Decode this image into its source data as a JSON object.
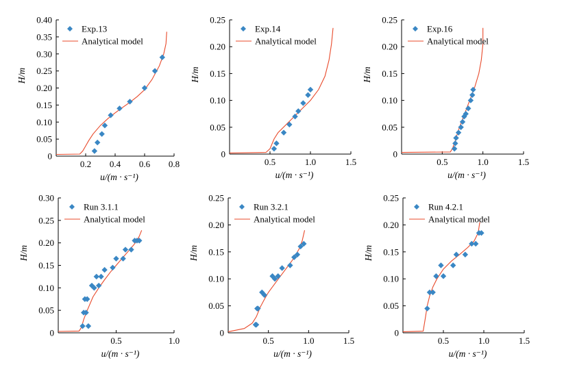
{
  "colors": {
    "points": "#3a87c4",
    "model": "#e8492a",
    "axes": "#000000"
  },
  "model_label": "Analytical model",
  "chart_data": [
    {
      "type": "scatter",
      "legend_name": "Exp.13",
      "xlabel": "u/(m · s⁻¹)",
      "ylabel": "H/m",
      "xlim": [
        0,
        0.8
      ],
      "ylim": [
        0,
        0.4
      ],
      "xticks": [
        {
          "v": 0.2,
          "label": "0.2"
        },
        {
          "v": 0.4,
          "label": "0.4"
        },
        {
          "v": 0.6,
          "label": "0.6"
        },
        {
          "v": 0.8,
          "label": "0.8"
        }
      ],
      "yticks": [
        {
          "v": 0,
          "label": "0"
        },
        {
          "v": 0.05,
          "label": "0.05"
        },
        {
          "v": 0.1,
          "label": "0.10"
        },
        {
          "v": 0.15,
          "label": "0.15"
        },
        {
          "v": 0.2,
          "label": "0.20"
        },
        {
          "v": 0.25,
          "label": "0.25"
        },
        {
          "v": 0.3,
          "label": "0.30"
        },
        {
          "v": 0.35,
          "label": "0.35"
        },
        {
          "v": 0.4,
          "label": "0.40"
        }
      ],
      "series": [
        {
          "kind": "points",
          "x": [
            0.26,
            0.28,
            0.31,
            0.33,
            0.37,
            0.43,
            0.5,
            0.6,
            0.67,
            0.72
          ],
          "y": [
            0.015,
            0.04,
            0.065,
            0.09,
            0.12,
            0.14,
            0.16,
            0.2,
            0.25,
            0.29
          ]
        },
        {
          "kind": "model",
          "x": [
            0.0,
            0.16,
            0.18,
            0.2,
            0.22,
            0.25,
            0.3,
            0.35,
            0.4,
            0.45,
            0.5,
            0.55,
            0.6,
            0.65,
            0.7,
            0.73,
            0.745,
            0.75
          ],
          "y": [
            0.005,
            0.006,
            0.015,
            0.03,
            0.045,
            0.065,
            0.09,
            0.11,
            0.127,
            0.143,
            0.158,
            0.175,
            0.195,
            0.225,
            0.265,
            0.3,
            0.33,
            0.365
          ]
        }
      ]
    },
    {
      "type": "scatter",
      "legend_name": "Exp.14",
      "xlabel": "u/(m · s⁻¹)",
      "ylabel": "H/m",
      "xlim": [
        0,
        1.5
      ],
      "ylim": [
        0,
        0.25
      ],
      "xticks": [
        {
          "v": 0.5,
          "label": "0.5"
        },
        {
          "v": 1.0,
          "label": "1.0"
        },
        {
          "v": 1.5,
          "label": "1.5"
        }
      ],
      "yticks": [
        {
          "v": 0,
          "label": "0"
        },
        {
          "v": 0.05,
          "label": "0.05"
        },
        {
          "v": 0.1,
          "label": "0.10"
        },
        {
          "v": 0.15,
          "label": "0.15"
        },
        {
          "v": 0.2,
          "label": "0.20"
        },
        {
          "v": 0.25,
          "label": "0.25"
        }
      ],
      "series": [
        {
          "kind": "points",
          "x": [
            0.55,
            0.58,
            0.67,
            0.74,
            0.81,
            0.85,
            0.91,
            0.97,
            1.0
          ],
          "y": [
            0.01,
            0.02,
            0.04,
            0.055,
            0.07,
            0.08,
            0.095,
            0.11,
            0.12
          ]
        },
        {
          "kind": "model",
          "x": [
            0.0,
            0.45,
            0.5,
            0.55,
            0.6,
            0.7,
            0.8,
            0.9,
            1.0,
            1.1,
            1.18,
            1.23,
            1.26,
            1.28
          ],
          "y": [
            0.002,
            0.003,
            0.01,
            0.028,
            0.04,
            0.055,
            0.07,
            0.085,
            0.1,
            0.12,
            0.145,
            0.175,
            0.205,
            0.235
          ]
        }
      ]
    },
    {
      "type": "scatter",
      "legend_name": "Exp.16",
      "xlabel": "u/(m · s⁻¹)",
      "ylabel": "H/m",
      "xlim": [
        0,
        1.5
      ],
      "ylim": [
        0,
        0.25
      ],
      "xticks": [
        {
          "v": 0.5,
          "label": "0.5"
        },
        {
          "v": 1.0,
          "label": "1.0"
        },
        {
          "v": 1.5,
          "label": "1.5"
        }
      ],
      "yticks": [
        {
          "v": 0,
          "label": "0"
        },
        {
          "v": 0.05,
          "label": "0.05"
        },
        {
          "v": 0.1,
          "label": "0.10"
        },
        {
          "v": 0.15,
          "label": "0.15"
        },
        {
          "v": 0.2,
          "label": "0.20"
        },
        {
          "v": 0.25,
          "label": "0.25"
        }
      ],
      "series": [
        {
          "kind": "points",
          "x": [
            0.65,
            0.66,
            0.67,
            0.7,
            0.73,
            0.75,
            0.77,
            0.79,
            0.82,
            0.85,
            0.87,
            0.88
          ],
          "y": [
            0.01,
            0.02,
            0.03,
            0.04,
            0.05,
            0.06,
            0.07,
            0.075,
            0.085,
            0.1,
            0.11,
            0.12
          ]
        },
        {
          "kind": "model",
          "x": [
            0.0,
            0.6,
            0.63,
            0.66,
            0.7,
            0.75,
            0.8,
            0.85,
            0.9,
            0.95,
            0.98,
            1.0,
            1.0
          ],
          "y": [
            0.003,
            0.004,
            0.012,
            0.025,
            0.045,
            0.065,
            0.085,
            0.105,
            0.125,
            0.15,
            0.175,
            0.205,
            0.235
          ]
        }
      ]
    },
    {
      "type": "scatter",
      "legend_name": "Run 3.1.1",
      "xlabel": "u/(m · s⁻¹)",
      "ylabel": "H/m",
      "xlim": [
        0,
        1.0
      ],
      "ylim": [
        0,
        0.3
      ],
      "xticks": [
        {
          "v": 0.5,
          "label": "0.5"
        },
        {
          "v": 1.0,
          "label": "1.0"
        }
      ],
      "yticks": [
        {
          "v": 0,
          "label": "0"
        },
        {
          "v": 0.05,
          "label": "0.05"
        },
        {
          "v": 0.1,
          "label": "0.10"
        },
        {
          "v": 0.15,
          "label": "0.15"
        },
        {
          "v": 0.2,
          "label": "0.20"
        },
        {
          "v": 0.25,
          "label": "0.25"
        },
        {
          "v": 0.3,
          "label": "0.30"
        }
      ],
      "series": [
        {
          "kind": "points",
          "x": [
            0.21,
            0.22,
            0.23,
            0.24,
            0.25,
            0.26,
            0.29,
            0.31,
            0.33,
            0.35,
            0.37,
            0.4,
            0.47,
            0.5,
            0.56,
            0.58,
            0.63,
            0.66,
            0.68,
            0.7
          ],
          "y": [
            0.015,
            0.045,
            0.075,
            0.045,
            0.075,
            0.015,
            0.105,
            0.1,
            0.125,
            0.105,
            0.125,
            0.14,
            0.145,
            0.165,
            0.165,
            0.185,
            0.185,
            0.205,
            0.205,
            0.205
          ]
        },
        {
          "kind": "model",
          "x": [
            0.0,
            0.18,
            0.2,
            0.22,
            0.25,
            0.3,
            0.35,
            0.4,
            0.45,
            0.5,
            0.55,
            0.6,
            0.65,
            0.68,
            0.7,
            0.72
          ],
          "y": [
            0.003,
            0.004,
            0.012,
            0.03,
            0.05,
            0.08,
            0.1,
            0.118,
            0.135,
            0.15,
            0.165,
            0.18,
            0.195,
            0.205,
            0.215,
            0.228
          ]
        }
      ]
    },
    {
      "type": "scatter",
      "legend_name": "Run 3.2.1",
      "xlabel": "u/(m · s⁻¹)",
      "ylabel": "H/m",
      "xlim": [
        0,
        1.5
      ],
      "ylim": [
        0,
        0.25
      ],
      "xticks": [
        {
          "v": 0.5,
          "label": "0.5"
        },
        {
          "v": 1.0,
          "label": "1.0"
        },
        {
          "v": 1.5,
          "label": "1.5"
        }
      ],
      "yticks": [
        {
          "v": 0,
          "label": "0"
        },
        {
          "v": 0.05,
          "label": "0.05"
        },
        {
          "v": 0.1,
          "label": "0.10"
        },
        {
          "v": 0.15,
          "label": "0.15"
        },
        {
          "v": 0.2,
          "label": "0.20"
        },
        {
          "v": 0.25,
          "label": "0.25"
        }
      ],
      "series": [
        {
          "kind": "points",
          "x": [
            0.34,
            0.35,
            0.36,
            0.37,
            0.42,
            0.45,
            0.55,
            0.58,
            0.62,
            0.67,
            0.77,
            0.82,
            0.86,
            0.9,
            0.94
          ],
          "y": [
            0.015,
            0.015,
            0.045,
            0.045,
            0.075,
            0.07,
            0.105,
            0.1,
            0.105,
            0.12,
            0.125,
            0.14,
            0.145,
            0.16,
            0.165
          ]
        },
        {
          "kind": "model",
          "x": [
            0.0,
            0.2,
            0.3,
            0.35,
            0.4,
            0.45,
            0.5,
            0.6,
            0.7,
            0.8,
            0.88,
            0.92,
            0.95
          ],
          "y": [
            0.002,
            0.008,
            0.018,
            0.03,
            0.048,
            0.062,
            0.075,
            0.095,
            0.115,
            0.135,
            0.155,
            0.17,
            0.19
          ]
        }
      ]
    },
    {
      "type": "scatter",
      "legend_name": "Run 4.2.1",
      "xlabel": "u/(m · s⁻¹)",
      "ylabel": "H/m",
      "xlim": [
        0,
        1.5
      ],
      "ylim": [
        0,
        0.25
      ],
      "xticks": [
        {
          "v": 0.5,
          "label": "0.5"
        },
        {
          "v": 1.0,
          "label": "1.0"
        },
        {
          "v": 1.5,
          "label": "1.5"
        }
      ],
      "yticks": [
        {
          "v": 0,
          "label": "0"
        },
        {
          "v": 0.05,
          "label": "0.05"
        },
        {
          "v": 0.1,
          "label": "0.10"
        },
        {
          "v": 0.15,
          "label": "0.15"
        },
        {
          "v": 0.2,
          "label": "0.20"
        },
        {
          "v": 0.25,
          "label": "0.25"
        }
      ],
      "series": [
        {
          "kind": "points",
          "x": [
            0.3,
            0.33,
            0.37,
            0.41,
            0.47,
            0.5,
            0.62,
            0.66,
            0.77,
            0.85,
            0.9,
            0.94,
            0.97
          ],
          "y": [
            0.045,
            0.075,
            0.075,
            0.105,
            0.125,
            0.105,
            0.125,
            0.145,
            0.145,
            0.165,
            0.165,
            0.185,
            0.185
          ]
        },
        {
          "kind": "model",
          "x": [
            0.0,
            0.25,
            0.28,
            0.3,
            0.33,
            0.37,
            0.42,
            0.5,
            0.6,
            0.7,
            0.8,
            0.88,
            0.93,
            0.95
          ],
          "y": [
            0.002,
            0.003,
            0.03,
            0.05,
            0.068,
            0.085,
            0.1,
            0.118,
            0.133,
            0.145,
            0.158,
            0.17,
            0.185,
            0.205
          ]
        }
      ]
    }
  ]
}
